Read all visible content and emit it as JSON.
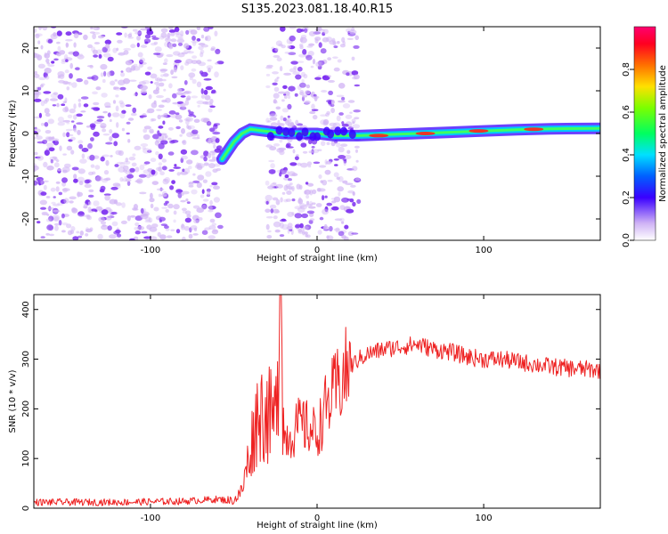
{
  "title": "S135.2023.081.18.40.R15",
  "chart_data": [
    {
      "type": "heatmap",
      "xlabel": "Height of straight line (km)",
      "ylabel": "Frequency (Hz)",
      "xlim": [
        -170,
        170
      ],
      "ylim": [
        -25,
        25
      ],
      "x_ticks": [
        "-100",
        "0",
        "100"
      ],
      "y_ticks": [
        "-20",
        "-10",
        "0",
        "10",
        "20"
      ],
      "colorbar": {
        "label": "Normalized spectral amplitude",
        "range": [
          0,
          1
        ],
        "ticks": [
          "0.0",
          "0.2",
          "0.4",
          "0.6",
          "0.8"
        ]
      },
      "signal_track": {
        "heights_km": [
          -57,
          -50,
          -45,
          -40,
          -30,
          -20,
          -10,
          0,
          10,
          20,
          25,
          40,
          60,
          80,
          100,
          120,
          140,
          170
        ],
        "frequency_hz": [
          -6,
          -2,
          0,
          1,
          0.5,
          0,
          0,
          0,
          -0.5,
          -0.5,
          -0.5,
          -0.3,
          0,
          0.3,
          0.6,
          0.9,
          1.1,
          1.2
        ]
      },
      "regions": [
        {
          "from_km": -170,
          "to_km": -58,
          "content": "noise"
        },
        {
          "from_km": -58,
          "to_km": -30,
          "content": "empty"
        },
        {
          "from_km": -30,
          "to_km": 25,
          "content": "noise"
        },
        {
          "from_km": 25,
          "to_km": 170,
          "content": "empty"
        }
      ]
    },
    {
      "type": "line",
      "xlabel": "Height of straight line (km)",
      "ylabel": "SNR (10 * v/v)",
      "xlim": [
        -170,
        170
      ],
      "ylim": [
        0,
        430
      ],
      "x_ticks": [
        "-100",
        "0",
        "100"
      ],
      "y_ticks": [
        "0",
        "100",
        "200",
        "300",
        "400"
      ],
      "series": [
        {
          "color": "#ee2222",
          "x": [
            -170,
            -120,
            -80,
            -60,
            -50,
            -45,
            -40,
            -35,
            -30,
            -25,
            -22,
            -20,
            -15,
            -10,
            -5,
            0,
            5,
            10,
            15,
            20,
            25,
            30,
            40,
            50,
            60,
            70,
            80,
            90,
            100,
            110,
            120,
            130,
            140,
            150,
            160,
            170
          ],
          "y": [
            12,
            12,
            14,
            18,
            15,
            35,
            120,
            200,
            190,
            170,
            430,
            140,
            150,
            170,
            160,
            150,
            200,
            230,
            260,
            285,
            300,
            310,
            320,
            325,
            330,
            320,
            315,
            305,
            300,
            300,
            295,
            290,
            285,
            282,
            280,
            278
          ]
        }
      ]
    }
  ],
  "colors": {
    "signal_line": "#ee2222",
    "noise": "#7b2cf0",
    "noise_light": "#d2b6f5"
  }
}
